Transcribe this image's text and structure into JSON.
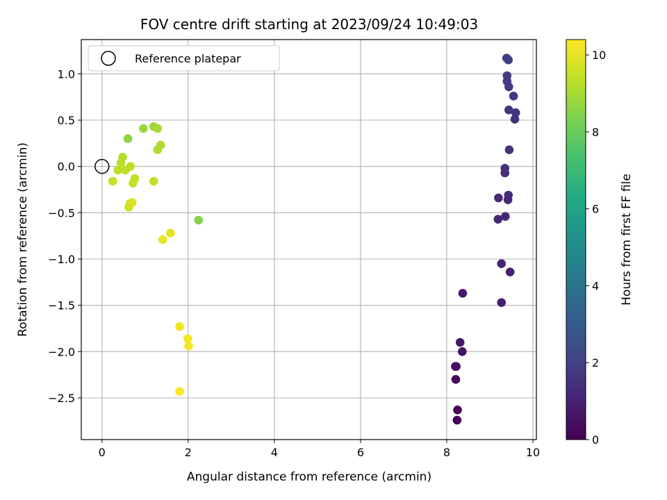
{
  "chart_data": {
    "type": "scatter",
    "title": "FOV centre drift starting at 2023/09/24 10:49:03",
    "xlabel": "Angular distance from reference (arcmin)",
    "ylabel": "Rotation from reference (arcmin)",
    "xlim": [
      -0.48,
      10.08
    ],
    "ylim": [
      -2.95,
      1.37
    ],
    "xticks": [
      0,
      2,
      4,
      6,
      8,
      10
    ],
    "xtick_labels": [
      "0",
      "2",
      "4",
      "6",
      "8",
      "10"
    ],
    "yticks": [
      1.0,
      0.5,
      0.0,
      -0.5,
      -1.0,
      -1.5,
      -2.0,
      -2.5
    ],
    "ytick_labels": [
      "1.0",
      "0.5",
      "0.0",
      "−0.5",
      "−1.0",
      "−1.5",
      "−2.0",
      "−2.5"
    ],
    "grid": true,
    "legend": {
      "position": "top-left",
      "entries": [
        "Reference platepar"
      ]
    },
    "reference": {
      "name": "Reference platepar",
      "x": 0,
      "y": 0
    },
    "colorbar": {
      "label": "Hours from first FF file",
      "colormap": "viridis",
      "range": [
        0,
        10.4
      ],
      "ticks": [
        0,
        2,
        4,
        6,
        8,
        10
      ],
      "tick_labels": [
        "0",
        "2",
        "4",
        "6",
        "8",
        "10"
      ]
    },
    "points": [
      {
        "x": 8.24,
        "y": -2.74,
        "h": 0.05
      },
      {
        "x": 8.25,
        "y": -2.63,
        "h": 0.15
      },
      {
        "x": 8.21,
        "y": -2.3,
        "h": 0.25
      },
      {
        "x": 8.2,
        "y": -2.16,
        "h": 0.35
      },
      {
        "x": 8.22,
        "y": -2.16,
        "h": 0.45
      },
      {
        "x": 8.36,
        "y": -2.0,
        "h": 0.55
      },
      {
        "x": 8.31,
        "y": -1.9,
        "h": 0.65
      },
      {
        "x": 8.37,
        "y": -1.37,
        "h": 0.75
      },
      {
        "x": 9.27,
        "y": -1.47,
        "h": 0.85
      },
      {
        "x": 9.47,
        "y": -1.14,
        "h": 0.95
      },
      {
        "x": 9.27,
        "y": -1.05,
        "h": 1.05
      },
      {
        "x": 9.19,
        "y": -0.57,
        "h": 1.1
      },
      {
        "x": 9.36,
        "y": -0.54,
        "h": 1.15
      },
      {
        "x": 9.2,
        "y": -0.34,
        "h": 1.2
      },
      {
        "x": 9.42,
        "y": -0.36,
        "h": 1.25
      },
      {
        "x": 9.43,
        "y": -0.31,
        "h": 1.3
      },
      {
        "x": 9.35,
        "y": -0.07,
        "h": 1.35
      },
      {
        "x": 9.35,
        "y": -0.02,
        "h": 1.4
      },
      {
        "x": 9.45,
        "y": 0.18,
        "h": 1.45
      },
      {
        "x": 9.58,
        "y": 0.51,
        "h": 1.5
      },
      {
        "x": 9.6,
        "y": 0.58,
        "h": 1.55
      },
      {
        "x": 9.44,
        "y": 0.61,
        "h": 1.6
      },
      {
        "x": 9.55,
        "y": 0.76,
        "h": 1.65
      },
      {
        "x": 9.44,
        "y": 0.86,
        "h": 1.7
      },
      {
        "x": 9.4,
        "y": 0.92,
        "h": 1.75
      },
      {
        "x": 9.4,
        "y": 0.98,
        "h": 1.8
      },
      {
        "x": 9.43,
        "y": 1.15,
        "h": 1.85
      },
      {
        "x": 9.39,
        "y": 1.17,
        "h": 1.9
      },
      {
        "x": 2.24,
        "y": -0.58,
        "h": 8.5
      },
      {
        "x": 0.6,
        "y": 0.3,
        "h": 8.6
      },
      {
        "x": 0.96,
        "y": 0.41,
        "h": 8.8
      },
      {
        "x": 1.2,
        "y": 0.43,
        "h": 8.9
      },
      {
        "x": 1.29,
        "y": 0.41,
        "h": 9.0
      },
      {
        "x": 1.36,
        "y": 0.23,
        "h": 9.1
      },
      {
        "x": 1.29,
        "y": 0.18,
        "h": 9.15
      },
      {
        "x": 0.48,
        "y": 0.1,
        "h": 9.2
      },
      {
        "x": 0.44,
        "y": 0.04,
        "h": 9.25
      },
      {
        "x": 0.37,
        "y": -0.04,
        "h": 9.3
      },
      {
        "x": 0.54,
        "y": -0.04,
        "h": 9.35
      },
      {
        "x": 0.66,
        "y": 0.0,
        "h": 9.4
      },
      {
        "x": 0.76,
        "y": -0.13,
        "h": 9.45
      },
      {
        "x": 0.72,
        "y": -0.18,
        "h": 9.5
      },
      {
        "x": 1.2,
        "y": -0.16,
        "h": 9.4
      },
      {
        "x": 0.25,
        "y": -0.16,
        "h": 9.55
      },
      {
        "x": 0.62,
        "y": -0.44,
        "h": 9.6
      },
      {
        "x": 0.65,
        "y": -0.4,
        "h": 9.7
      },
      {
        "x": 0.7,
        "y": -0.39,
        "h": 9.8
      },
      {
        "x": 1.59,
        "y": -0.72,
        "h": 10.0
      },
      {
        "x": 1.41,
        "y": -0.79,
        "h": 10.1
      },
      {
        "x": 1.8,
        "y": -1.73,
        "h": 10.2
      },
      {
        "x": 1.99,
        "y": -1.86,
        "h": 10.25
      },
      {
        "x": 2.01,
        "y": -1.94,
        "h": 10.3
      },
      {
        "x": 1.8,
        "y": -2.43,
        "h": 10.35
      }
    ]
  }
}
